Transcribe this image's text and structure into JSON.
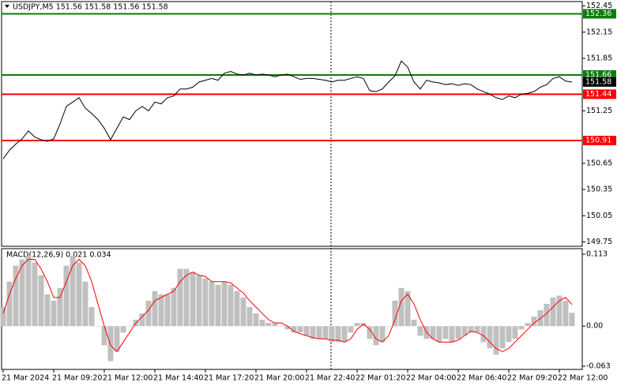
{
  "chart_data": [
    {
      "type": "line",
      "title": "USDJPY,M5  151.56 151.58 151.56 151.58",
      "color": "#000000",
      "categories": [
        "21 Mar 2024",
        null,
        null,
        null,
        null,
        null,
        null,
        null,
        "21 Mar 09:20",
        null,
        null,
        null,
        null,
        null,
        null,
        null,
        "21 Mar 12:00",
        null,
        null,
        null,
        null,
        null,
        null,
        null,
        "21 Mar 14:40",
        null,
        null,
        null,
        null,
        null,
        null,
        null,
        "21 Mar 17:20",
        null,
        null,
        null,
        null,
        null,
        null,
        null,
        "21 Mar 20:00",
        null,
        null,
        null,
        null,
        null,
        null,
        null,
        "21 Mar 22:40",
        null,
        null,
        null,
        null,
        null,
        null,
        null,
        "22 Mar 01:20",
        null,
        null,
        null,
        null,
        null,
        null,
        null,
        "22 Mar 04:00",
        null,
        null,
        null,
        null,
        null,
        null,
        null,
        "22 Mar 06:40",
        null,
        null,
        null,
        null,
        null,
        null,
        null,
        "22 Mar 09:20",
        null,
        null,
        null,
        null,
        null,
        null,
        null,
        "22 Mar 12:00",
        null,
        null
      ],
      "values": [
        150.7,
        150.8,
        150.87,
        150.93,
        151.02,
        150.95,
        150.92,
        150.9,
        150.93,
        151.1,
        151.3,
        151.35,
        151.4,
        151.28,
        151.22,
        151.15,
        151.05,
        150.92,
        151.05,
        151.18,
        151.15,
        151.25,
        151.3,
        151.25,
        151.35,
        151.33,
        151.4,
        151.42,
        151.5,
        151.5,
        151.52,
        151.58,
        151.6,
        151.62,
        151.6,
        151.68,
        151.7,
        151.67,
        151.66,
        151.68,
        151.66,
        151.67,
        151.66,
        151.64,
        151.66,
        151.67,
        151.64,
        151.61,
        151.62,
        151.62,
        151.61,
        151.6,
        151.58,
        151.6,
        151.6,
        151.62,
        151.64,
        151.62,
        151.48,
        151.47,
        151.5,
        151.58,
        151.65,
        151.82,
        151.75,
        151.58,
        151.5,
        151.6,
        151.58,
        151.57,
        151.55,
        151.56,
        151.54,
        151.56,
        151.55,
        151.5,
        151.47,
        151.44,
        151.4,
        151.38,
        151.42,
        151.4,
        151.44,
        151.45,
        151.47,
        151.52,
        151.55,
        151.62,
        151.64,
        151.59,
        151.58
      ],
      "ylim": [
        149.7,
        152.5
      ],
      "yticks": [
        152.45,
        152.15,
        151.85,
        151.25,
        150.65,
        150.35,
        150.05,
        149.75
      ],
      "levels": [
        {
          "value": 152.36,
          "color": "#0b7d0b"
        },
        {
          "value": 151.66,
          "color": "#0b7d0b"
        },
        {
          "value": 151.44,
          "color": "#ff0000"
        },
        {
          "value": 150.91,
          "color": "#ff0000"
        }
      ],
      "last_price": 151.58
    },
    {
      "type": "macd",
      "title": "MACD(12,26,9) 0.021 0.034",
      "series": [
        {
          "type": "bar",
          "color": "#c0c0c0",
          "values": [
            0.03,
            0.07,
            0.095,
            0.105,
            0.11,
            0.1,
            0.08,
            0.05,
            0.04,
            0.06,
            0.095,
            0.11,
            0.1,
            0.07,
            0.03,
            0,
            -0.03,
            -0.055,
            -0.04,
            -0.01,
            0,
            0.01,
            0.02,
            0.04,
            0.055,
            0.05,
            0.05,
            0.06,
            0.09,
            0.09,
            0.085,
            0.08,
            0.075,
            0.07,
            0.065,
            0.07,
            0.065,
            0.055,
            0.045,
            0.03,
            0.02,
            0.01,
            0.005,
            0.005,
            0,
            -0.005,
            -0.01,
            -0.01,
            -0.015,
            -0.02,
            -0.02,
            -0.02,
            -0.025,
            -0.025,
            -0.025,
            -0.01,
            0.005,
            0.005,
            -0.02,
            -0.03,
            -0.025,
            0,
            0.04,
            0.06,
            0.055,
            0.01,
            -0.015,
            -0.02,
            -0.02,
            -0.025,
            -0.02,
            -0.025,
            -0.02,
            -0.015,
            -0.01,
            -0.01,
            -0.025,
            -0.035,
            -0.045,
            -0.035,
            -0.025,
            -0.02,
            -0.005,
            0.005,
            0.015,
            0.025,
            0.035,
            0.045,
            0.048,
            0.04,
            0.021
          ]
        },
        {
          "type": "line",
          "color": "#ff0000",
          "values": [
            0.02,
            0.05,
            0.075,
            0.095,
            0.105,
            0.105,
            0.09,
            0.07,
            0.045,
            0.045,
            0.07,
            0.095,
            0.105,
            0.095,
            0.07,
            0.035,
            0,
            -0.03,
            -0.04,
            -0.025,
            -0.01,
            0.005,
            0.015,
            0.025,
            0.04,
            0.045,
            0.05,
            0.055,
            0.07,
            0.08,
            0.085,
            0.08,
            0.078,
            0.07,
            0.07,
            0.07,
            0.068,
            0.06,
            0.052,
            0.04,
            0.03,
            0.02,
            0.01,
            0.005,
            0.005,
            0,
            -0.008,
            -0.012,
            -0.015,
            -0.018,
            -0.02,
            -0.02,
            -0.022,
            -0.022,
            -0.025,
            -0.02,
            -0.005,
            0.003,
            -0.005,
            -0.02,
            -0.025,
            -0.015,
            0.01,
            0.04,
            0.05,
            0.035,
            0.01,
            -0.01,
            -0.02,
            -0.025,
            -0.025,
            -0.025,
            -0.022,
            -0.015,
            -0.008,
            -0.01,
            -0.015,
            -0.025,
            -0.035,
            -0.04,
            -0.035,
            -0.025,
            -0.015,
            -0.005,
            0.005,
            0.012,
            0.02,
            0.03,
            0.04,
            0.045,
            0.034
          ]
        }
      ],
      "ylim": [
        -0.068,
        0.1205
      ],
      "yticks": [
        0.113,
        {
          "value": 0,
          "label": "0.00"
        },
        -0.063
      ]
    }
  ]
}
